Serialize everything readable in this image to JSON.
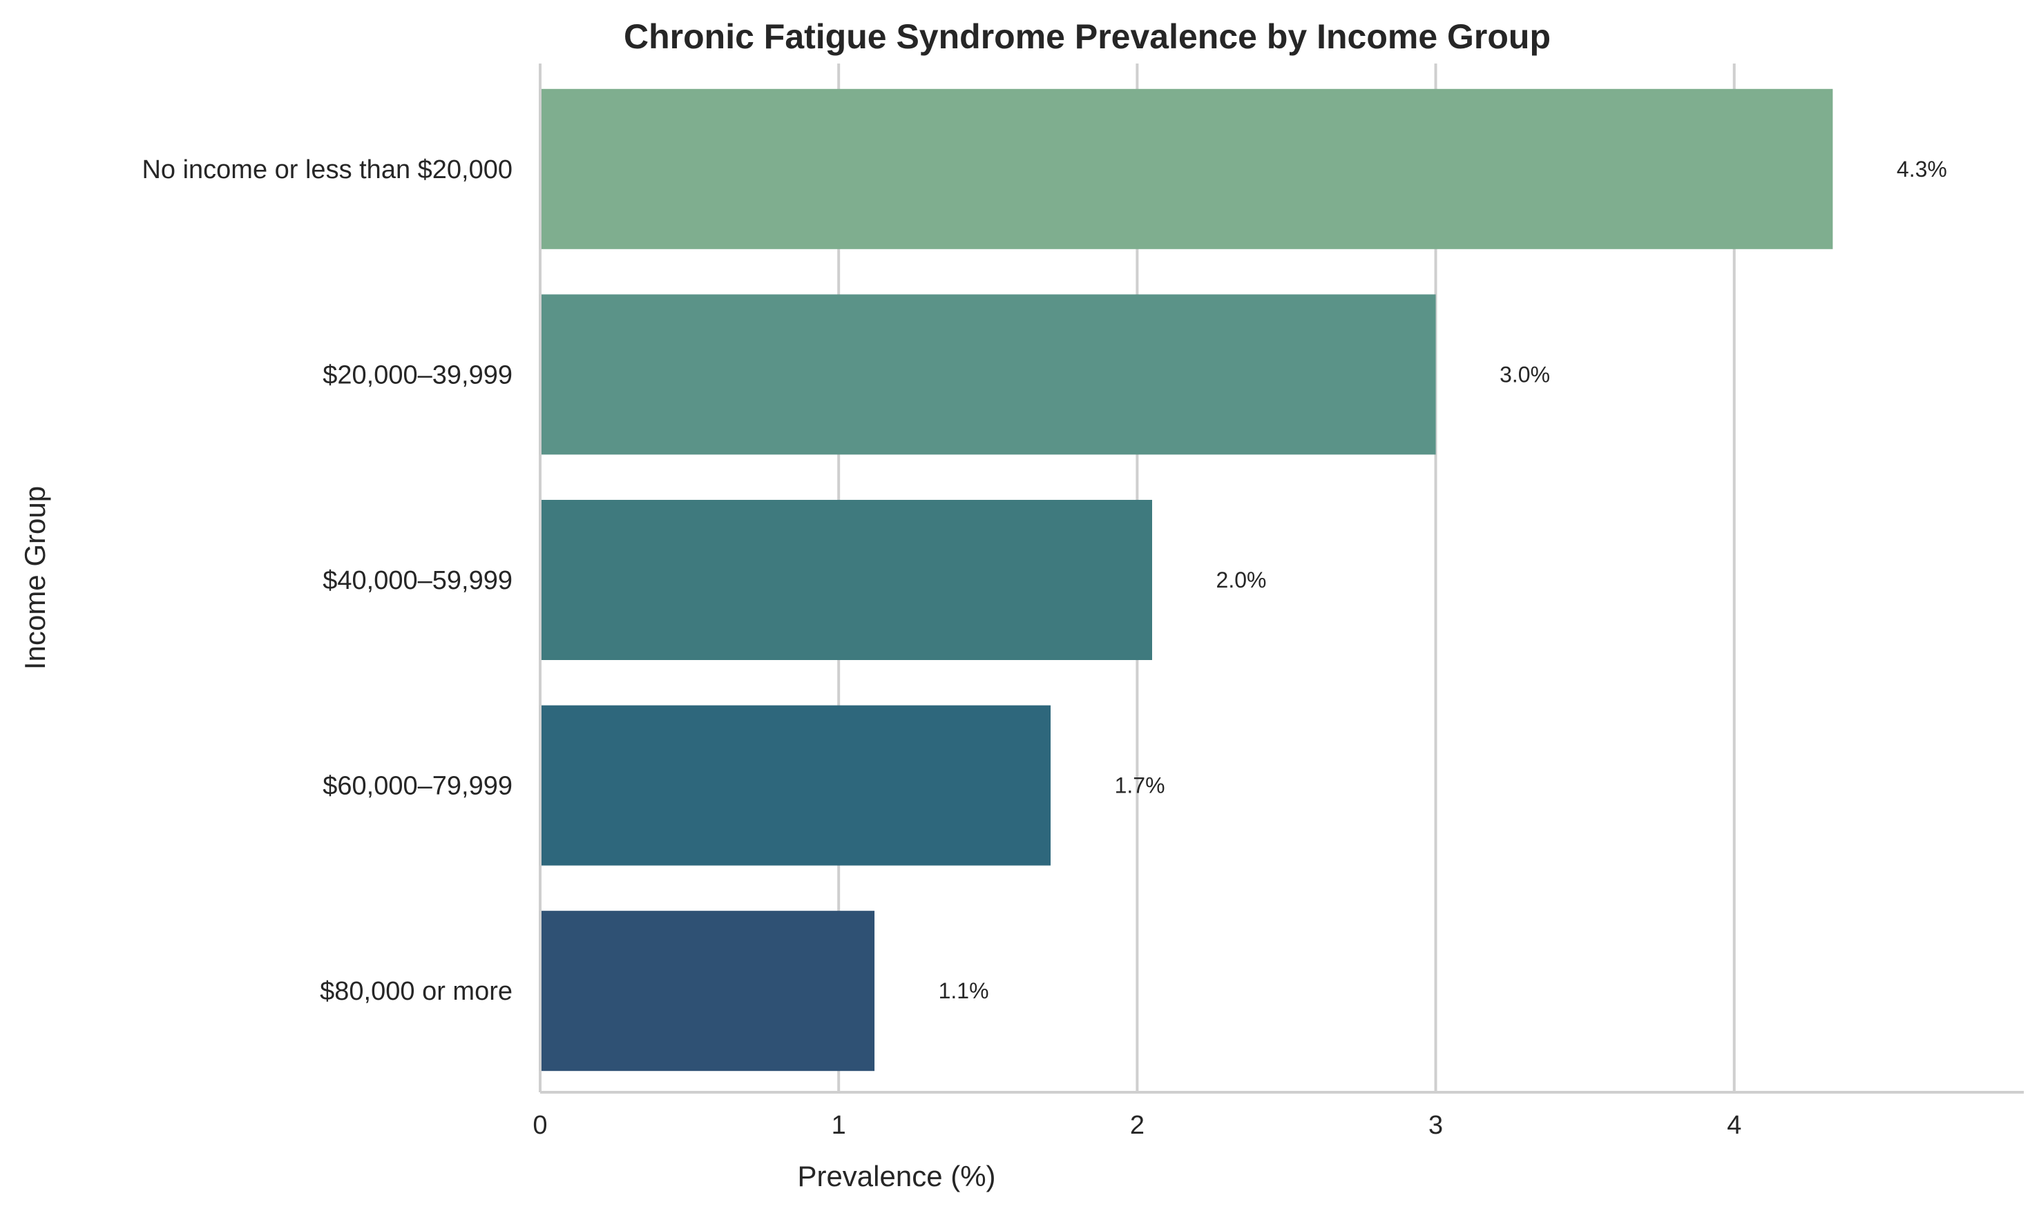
{
  "chart_data": {
    "type": "bar",
    "orientation": "horizontal",
    "title": "Chronic Fatigue Syndrome Prevalence by Income Group",
    "xlabel": "Prevalence (%)",
    "ylabel": "Income Group",
    "xlim": [
      0,
      4.97
    ],
    "xticks": [
      0,
      1,
      2,
      3,
      4
    ],
    "grid": "x",
    "categories": [
      "No income or less than $20,000",
      "$20,000–39,999",
      "$40,000–59,999",
      "$60,000–79,999",
      "$80,000 or more"
    ],
    "values": [
      4.33,
      3.0,
      2.05,
      1.71,
      1.12
    ],
    "data_labels": [
      "4.3%",
      "3.0%",
      "2.0%",
      "1.7%",
      "1.1%"
    ],
    "colors": [
      "#7fae8f",
      "#5b9388",
      "#3f7a7e",
      "#2e677c",
      "#2f5174"
    ]
  }
}
